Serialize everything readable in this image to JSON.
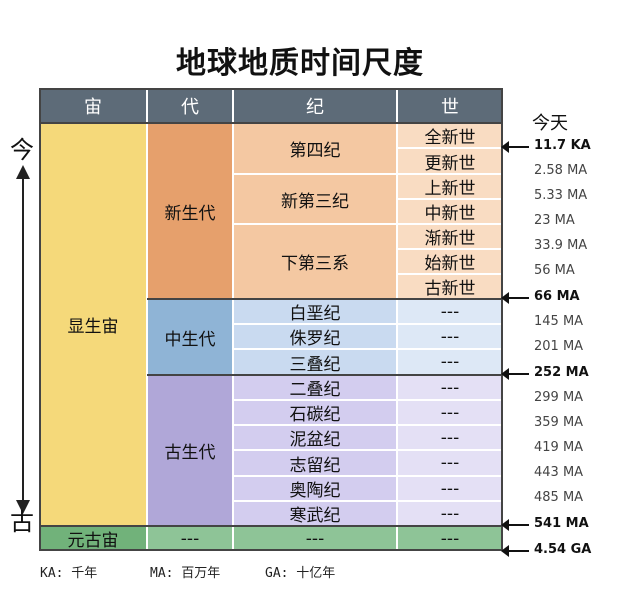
{
  "title": "地球地质时间尺度",
  "headers": [
    "宙",
    "代",
    "纪",
    "世"
  ],
  "side": {
    "top": "今",
    "bottom": "古"
  },
  "today_label": "今天",
  "eons": {
    "phanerozoic": "显生宙",
    "proterozoic": "元古宙"
  },
  "eras": {
    "cenozoic": "新生代",
    "mesozoic": "中生代",
    "paleozoic": "古生代"
  },
  "periods": {
    "quaternary": "第四纪",
    "neogene": "新第三纪",
    "paleogene": "下第三系",
    "cretaceous": "白垩纪",
    "jurassic": "侏罗纪",
    "triassic": "三叠纪",
    "permian": "二叠纪",
    "carboniferous": "石碳纪",
    "devonian": "泥盆纪",
    "silurian": "志留纪",
    "ordovician": "奥陶纪",
    "cambrian": "寒武纪"
  },
  "epochs": {
    "holocene": "全新世",
    "pleistocene": "更新世",
    "pliocene": "上新世",
    "miocene": "中新世",
    "oligocene": "渐新世",
    "eocene": "始新世",
    "paleocene": "古新世"
  },
  "empty": "---",
  "ticks": [
    "11.7 KA",
    "2.58 MA",
    "5.33 MA",
    "23 MA",
    "33.9 MA",
    "56 MA",
    "66 MA",
    "145 MA",
    "201 MA",
    "252 MA",
    "299 MA",
    "359 MA",
    "419 MA",
    "443 MA",
    "485 MA",
    "541 MA",
    "4.54 GA"
  ],
  "legend": {
    "ka": "KA: 千年",
    "ma": "MA: 百万年",
    "ga": "GA: 十亿年"
  },
  "colors": {
    "header": "#5d6b78",
    "phanerozoic": "#f5d97a",
    "proterozoic": "#71b27a",
    "cenozoic": "#e6a06c",
    "mesozoic": "#8fb4d6",
    "paleozoic": "#b0a7d8"
  }
}
